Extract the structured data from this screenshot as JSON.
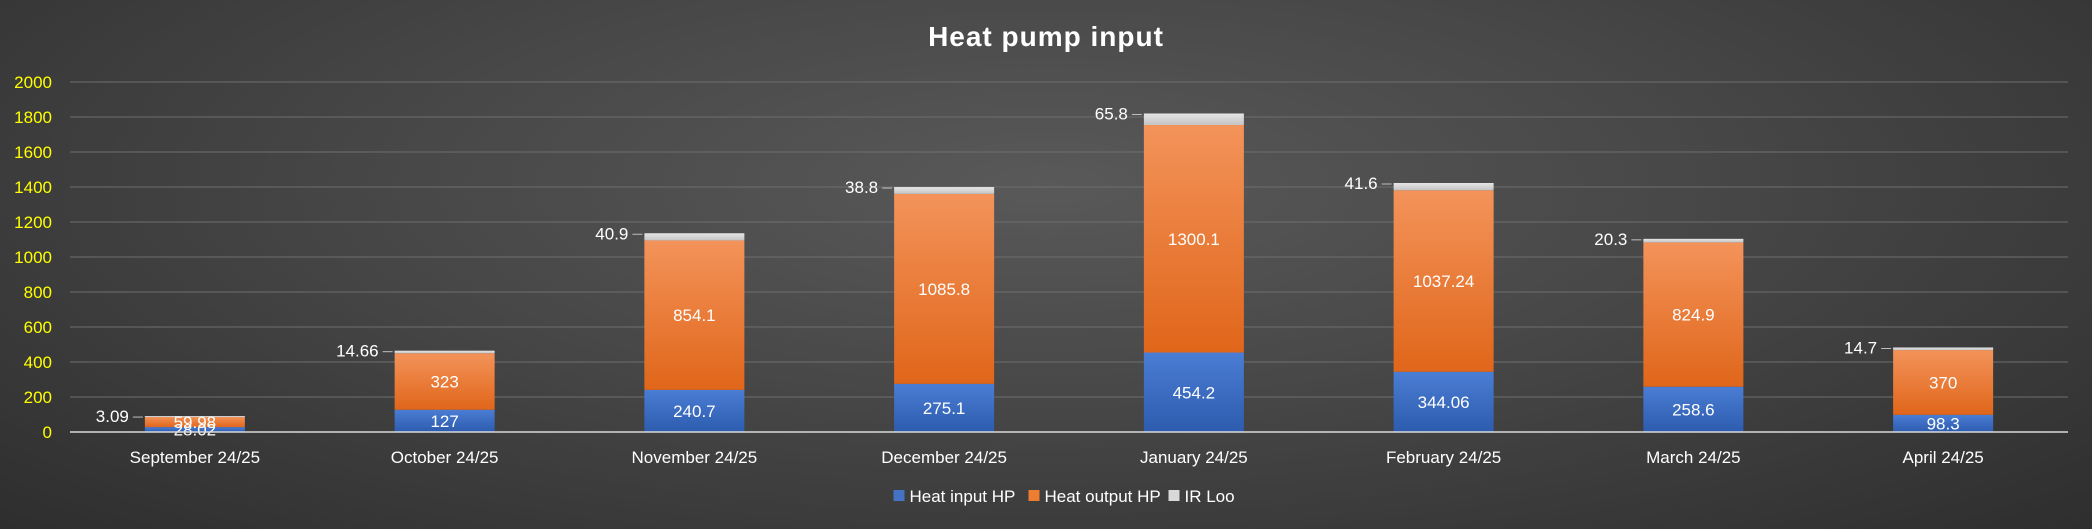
{
  "chart_data": {
    "type": "bar",
    "stacked": true,
    "title": "Heat pump input",
    "xlabel": "",
    "ylabel": "",
    "ylim": [
      0,
      2000
    ],
    "yticks": [
      0,
      200,
      400,
      600,
      800,
      1000,
      1200,
      1400,
      1600,
      1800,
      2000
    ],
    "grid": true,
    "legend_position": "bottom",
    "categories": [
      "September 24/25",
      "October 24/25",
      "November 24/25",
      "December 24/25",
      "January 24/25",
      "February 24/25",
      "March 24/25",
      "April 24/25"
    ],
    "series": [
      {
        "name": "Heat input HP",
        "color": "#4472c4",
        "values": [
          28.02,
          127,
          240.7,
          275.1,
          454.2,
          344.06,
          258.6,
          98.3
        ]
      },
      {
        "name": "Heat output HP",
        "color": "#ed7d31",
        "values": [
          59.98,
          323,
          854.1,
          1085.8,
          1300.1,
          1037.24,
          824.9,
          370
        ]
      },
      {
        "name": "IR Loo",
        "color": "#d9d9d9",
        "values": [
          3.09,
          14.66,
          40.9,
          38.8,
          65.8,
          41.6,
          20.3,
          14.7
        ]
      }
    ]
  }
}
